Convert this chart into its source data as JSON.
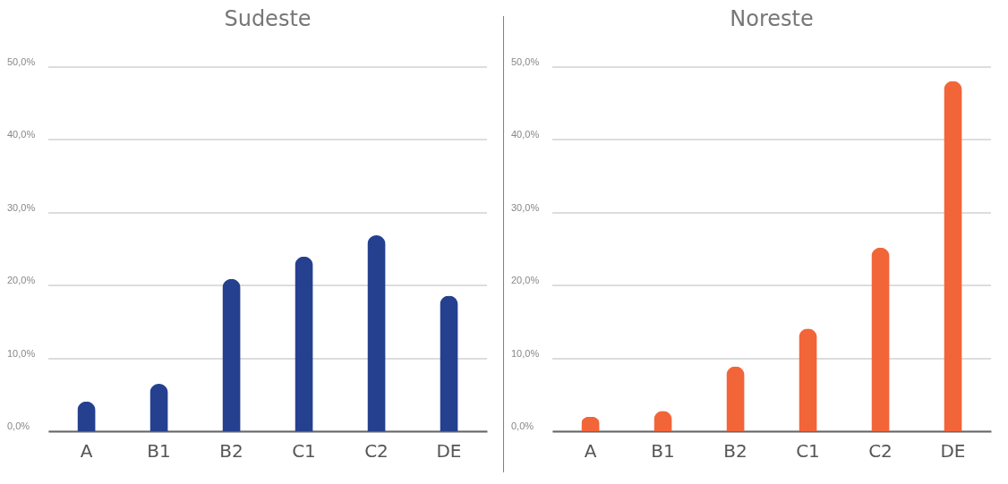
{
  "chart_data": [
    {
      "type": "bar",
      "title": "Sudeste",
      "categories": [
        "A",
        "B1",
        "B2",
        "C1",
        "C2",
        "DE"
      ],
      "values": [
        4.1,
        6.5,
        20.9,
        24.0,
        26.9,
        18.6
      ],
      "color": "#25408f",
      "ylim": [
        0,
        50
      ],
      "yticks": [
        {
          "value": 0,
          "label": "0,0%"
        },
        {
          "value": 10,
          "label": "10,0%"
        },
        {
          "value": 20,
          "label": "20,0%"
        },
        {
          "value": 30,
          "label": "30,0%"
        },
        {
          "value": 40,
          "label": "40,0%"
        },
        {
          "value": 50,
          "label": "50,0%"
        }
      ],
      "grid": "y"
    },
    {
      "type": "bar",
      "title": "Noreste",
      "categories": [
        "A",
        "B1",
        "B2",
        "C1",
        "C2",
        "DE"
      ],
      "values": [
        2.0,
        2.8,
        8.9,
        14.1,
        25.2,
        48.1
      ],
      "color": "#f26539",
      "ylim": [
        0,
        50
      ],
      "yticks": [
        {
          "value": 0,
          "label": "0,0%"
        },
        {
          "value": 10,
          "label": "10,0%"
        },
        {
          "value": 20,
          "label": "20,0%"
        },
        {
          "value": 30,
          "label": "30,0%"
        },
        {
          "value": 40,
          "label": "40,0%"
        },
        {
          "value": 50,
          "label": "50,0%"
        }
      ],
      "grid": "y"
    }
  ]
}
